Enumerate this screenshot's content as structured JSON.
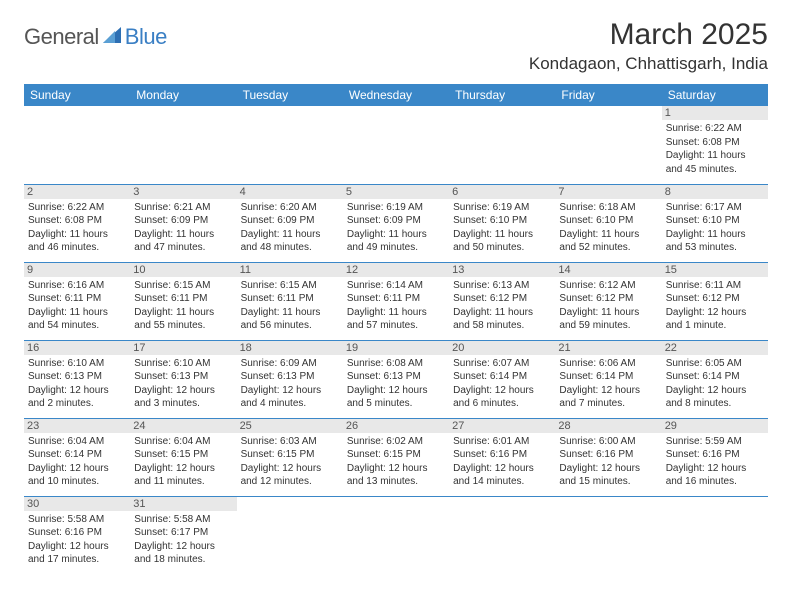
{
  "header": {
    "logo_general": "General",
    "logo_blue": "Blue",
    "month_title": "March 2025",
    "location": "Kondagaon, Chhattisgarh, India"
  },
  "style": {
    "header_bg": "#3a87c8",
    "header_fg": "#ffffff",
    "daynum_bg": "#e8e8e8",
    "border_color": "#3a87c8",
    "title_fontsize": 30,
    "location_fontsize": 17,
    "th_fontsize": 12,
    "cell_fontsize": 10
  },
  "days_of_week": [
    "Sunday",
    "Monday",
    "Tuesday",
    "Wednesday",
    "Thursday",
    "Friday",
    "Saturday"
  ],
  "weeks": [
    [
      null,
      null,
      null,
      null,
      null,
      null,
      {
        "n": "1",
        "sr": "6:22 AM",
        "ss": "6:08 PM",
        "dl": "11 hours and 45 minutes."
      }
    ],
    [
      {
        "n": "2",
        "sr": "6:22 AM",
        "ss": "6:08 PM",
        "dl": "11 hours and 46 minutes."
      },
      {
        "n": "3",
        "sr": "6:21 AM",
        "ss": "6:09 PM",
        "dl": "11 hours and 47 minutes."
      },
      {
        "n": "4",
        "sr": "6:20 AM",
        "ss": "6:09 PM",
        "dl": "11 hours and 48 minutes."
      },
      {
        "n": "5",
        "sr": "6:19 AM",
        "ss": "6:09 PM",
        "dl": "11 hours and 49 minutes."
      },
      {
        "n": "6",
        "sr": "6:19 AM",
        "ss": "6:10 PM",
        "dl": "11 hours and 50 minutes."
      },
      {
        "n": "7",
        "sr": "6:18 AM",
        "ss": "6:10 PM",
        "dl": "11 hours and 52 minutes."
      },
      {
        "n": "8",
        "sr": "6:17 AM",
        "ss": "6:10 PM",
        "dl": "11 hours and 53 minutes."
      }
    ],
    [
      {
        "n": "9",
        "sr": "6:16 AM",
        "ss": "6:11 PM",
        "dl": "11 hours and 54 minutes."
      },
      {
        "n": "10",
        "sr": "6:15 AM",
        "ss": "6:11 PM",
        "dl": "11 hours and 55 minutes."
      },
      {
        "n": "11",
        "sr": "6:15 AM",
        "ss": "6:11 PM",
        "dl": "11 hours and 56 minutes."
      },
      {
        "n": "12",
        "sr": "6:14 AM",
        "ss": "6:11 PM",
        "dl": "11 hours and 57 minutes."
      },
      {
        "n": "13",
        "sr": "6:13 AM",
        "ss": "6:12 PM",
        "dl": "11 hours and 58 minutes."
      },
      {
        "n": "14",
        "sr": "6:12 AM",
        "ss": "6:12 PM",
        "dl": "11 hours and 59 minutes."
      },
      {
        "n": "15",
        "sr": "6:11 AM",
        "ss": "6:12 PM",
        "dl": "12 hours and 1 minute."
      }
    ],
    [
      {
        "n": "16",
        "sr": "6:10 AM",
        "ss": "6:13 PM",
        "dl": "12 hours and 2 minutes."
      },
      {
        "n": "17",
        "sr": "6:10 AM",
        "ss": "6:13 PM",
        "dl": "12 hours and 3 minutes."
      },
      {
        "n": "18",
        "sr": "6:09 AM",
        "ss": "6:13 PM",
        "dl": "12 hours and 4 minutes."
      },
      {
        "n": "19",
        "sr": "6:08 AM",
        "ss": "6:13 PM",
        "dl": "12 hours and 5 minutes."
      },
      {
        "n": "20",
        "sr": "6:07 AM",
        "ss": "6:14 PM",
        "dl": "12 hours and 6 minutes."
      },
      {
        "n": "21",
        "sr": "6:06 AM",
        "ss": "6:14 PM",
        "dl": "12 hours and 7 minutes."
      },
      {
        "n": "22",
        "sr": "6:05 AM",
        "ss": "6:14 PM",
        "dl": "12 hours and 8 minutes."
      }
    ],
    [
      {
        "n": "23",
        "sr": "6:04 AM",
        "ss": "6:14 PM",
        "dl": "12 hours and 10 minutes."
      },
      {
        "n": "24",
        "sr": "6:04 AM",
        "ss": "6:15 PM",
        "dl": "12 hours and 11 minutes."
      },
      {
        "n": "25",
        "sr": "6:03 AM",
        "ss": "6:15 PM",
        "dl": "12 hours and 12 minutes."
      },
      {
        "n": "26",
        "sr": "6:02 AM",
        "ss": "6:15 PM",
        "dl": "12 hours and 13 minutes."
      },
      {
        "n": "27",
        "sr": "6:01 AM",
        "ss": "6:16 PM",
        "dl": "12 hours and 14 minutes."
      },
      {
        "n": "28",
        "sr": "6:00 AM",
        "ss": "6:16 PM",
        "dl": "12 hours and 15 minutes."
      },
      {
        "n": "29",
        "sr": "5:59 AM",
        "ss": "6:16 PM",
        "dl": "12 hours and 16 minutes."
      }
    ],
    [
      {
        "n": "30",
        "sr": "5:58 AM",
        "ss": "6:16 PM",
        "dl": "12 hours and 17 minutes."
      },
      {
        "n": "31",
        "sr": "5:58 AM",
        "ss": "6:17 PM",
        "dl": "12 hours and 18 minutes."
      },
      null,
      null,
      null,
      null,
      null
    ]
  ],
  "labels": {
    "sunrise": "Sunrise:",
    "sunset": "Sunset:",
    "daylight": "Daylight:"
  }
}
